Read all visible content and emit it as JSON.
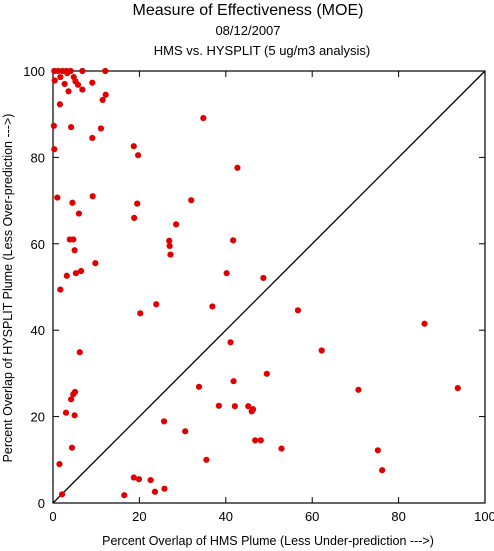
{
  "chart_data": {
    "type": "scatter",
    "title": "Measure of Effectiveness (MOE)",
    "subtitle_date": "08/12/2007",
    "subtitle_analysis": "HMS vs. HYSPLIT  (5 ug/m3 analysis)",
    "xlabel": "Percent Overlap of HMS Plume (Less Under-prediction --->)",
    "ylabel": "Percent Overlap of HYSPLIT Plume (Less Over-prediction --->)",
    "xlim": [
      0,
      100
    ],
    "ylim": [
      0,
      100
    ],
    "xticks": [
      0,
      20,
      40,
      60,
      80,
      100
    ],
    "yticks": [
      0,
      20,
      40,
      60,
      80,
      100
    ],
    "diagonal_reference_line": true,
    "point_color": "#e00000",
    "points": [
      [
        0.3,
        100
      ],
      [
        1.2,
        100
      ],
      [
        2.2,
        100
      ],
      [
        3.1,
        100
      ],
      [
        4.1,
        100
      ],
      [
        6.8,
        100
      ],
      [
        12.1,
        100
      ],
      [
        0.4,
        97.8
      ],
      [
        1.7,
        98.6
      ],
      [
        3.3,
        99.5
      ],
      [
        4.8,
        98.6
      ],
      [
        2.7,
        97.0
      ],
      [
        3.6,
        95.3
      ],
      [
        5.2,
        97.6
      ],
      [
        5.8,
        96.8
      ],
      [
        6.8,
        95.7
      ],
      [
        9.1,
        97.3
      ],
      [
        12.2,
        94.5
      ],
      [
        11.5,
        93.3
      ],
      [
        1.6,
        92.3
      ],
      [
        0.2,
        87.3
      ],
      [
        4.2,
        87.0
      ],
      [
        11.1,
        86.7
      ],
      [
        9.1,
        84.5
      ],
      [
        0.3,
        81.9
      ],
      [
        18.7,
        82.6
      ],
      [
        19.7,
        80.5
      ],
      [
        34.8,
        89.1
      ],
      [
        42.7,
        77.6
      ],
      [
        1.0,
        70.7
      ],
      [
        9.2,
        71.0
      ],
      [
        4.5,
        69.5
      ],
      [
        19.5,
        69.3
      ],
      [
        32.0,
        70.1
      ],
      [
        6.0,
        67.0
      ],
      [
        18.8,
        66.0
      ],
      [
        28.5,
        64.5
      ],
      [
        3.9,
        61.0
      ],
      [
        4.7,
        61.0
      ],
      [
        26.9,
        60.7
      ],
      [
        27.0,
        59.5
      ],
      [
        41.7,
        60.8
      ],
      [
        5.0,
        58.5
      ],
      [
        27.2,
        57.5
      ],
      [
        9.8,
        55.5
      ],
      [
        5.3,
        53.2
      ],
      [
        3.2,
        52.6
      ],
      [
        6.5,
        53.7
      ],
      [
        40.2,
        53.2
      ],
      [
        48.7,
        52.1
      ],
      [
        1.7,
        49.4
      ],
      [
        23.9,
        46.0
      ],
      [
        36.9,
        45.5
      ],
      [
        20.2,
        43.9
      ],
      [
        56.7,
        44.6
      ],
      [
        86.0,
        41.5
      ],
      [
        41.1,
        37.2
      ],
      [
        62.2,
        35.3
      ],
      [
        6.2,
        34.9
      ],
      [
        49.5,
        29.9
      ],
      [
        41.8,
        28.2
      ],
      [
        33.8,
        26.9
      ],
      [
        70.7,
        26.2
      ],
      [
        93.7,
        26.6
      ],
      [
        5.1,
        25.7
      ],
      [
        4.7,
        25.2
      ],
      [
        4.2,
        24.0
      ],
      [
        38.4,
        22.5
      ],
      [
        42.1,
        22.4
      ],
      [
        45.2,
        22.4
      ],
      [
        46.3,
        21.7
      ],
      [
        46.0,
        21.2
      ],
      [
        3.0,
        20.9
      ],
      [
        5.0,
        20.3
      ],
      [
        25.7,
        18.9
      ],
      [
        30.6,
        16.6
      ],
      [
        46.8,
        14.5
      ],
      [
        48.1,
        14.5
      ],
      [
        4.4,
        12.8
      ],
      [
        52.9,
        12.6
      ],
      [
        75.2,
        12.2
      ],
      [
        35.5,
        10.0
      ],
      [
        1.5,
        9.0
      ],
      [
        76.2,
        7.6
      ],
      [
        18.7,
        5.9
      ],
      [
        19.9,
        5.5
      ],
      [
        22.6,
        5.3
      ],
      [
        25.8,
        3.3
      ],
      [
        23.6,
        2.6
      ],
      [
        2.1,
        2.0
      ],
      [
        16.5,
        1.8
      ]
    ]
  }
}
